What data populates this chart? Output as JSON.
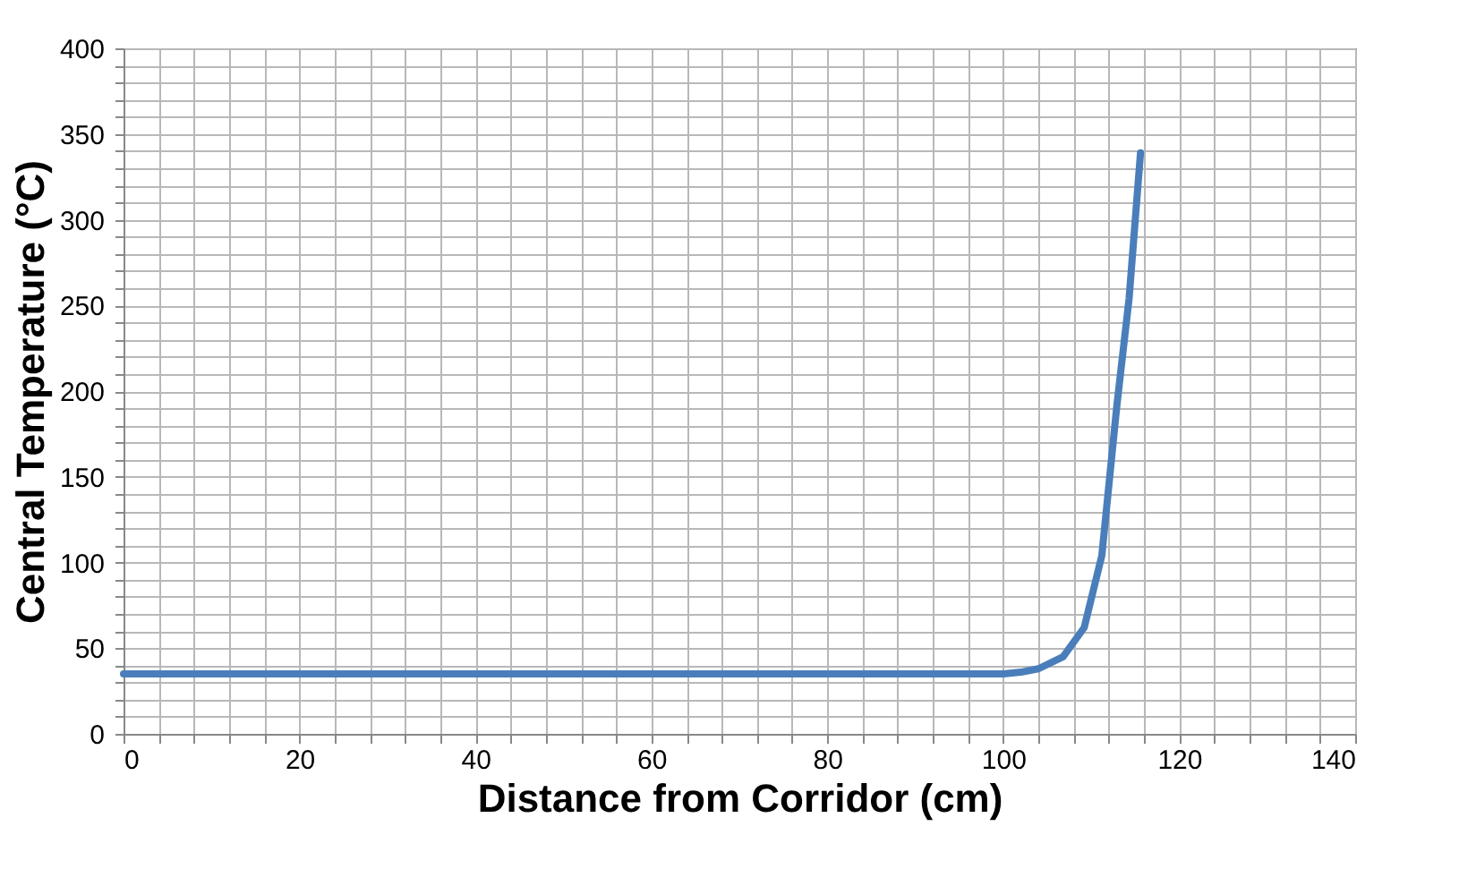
{
  "chart_data": {
    "type": "line",
    "xlabel": "Distance from Corridor (cm)",
    "ylabel": "Central Temperature (°C)",
    "series": [
      {
        "color": "#4a7ebb",
        "x": [
          0,
          20,
          40,
          60,
          80,
          100,
          102,
          104,
          106.8,
          109.2,
          111.2,
          112.9,
          114.3,
          115.6
        ],
        "values": [
          35,
          35,
          35,
          35,
          35,
          35,
          36,
          38,
          45,
          62,
          104,
          191,
          254,
          339
        ]
      }
    ],
    "xlim": [
      0,
      140
    ],
    "ylim": [
      0,
      400
    ],
    "xticks": [
      0,
      {
        "value": 4,
        "label": null
      },
      {
        "value": 8,
        "label": null
      },
      {
        "value": 12,
        "label": null
      },
      {
        "value": 16,
        "label": null
      },
      20,
      {
        "value": 24,
        "label": null
      },
      {
        "value": 28,
        "label": null
      },
      {
        "value": 32,
        "label": null
      },
      {
        "value": 36,
        "label": null
      },
      40,
      {
        "value": 44,
        "label": null
      },
      {
        "value": 48,
        "label": null
      },
      {
        "value": 52,
        "label": null
      },
      {
        "value": 56,
        "label": null
      },
      60,
      {
        "value": 64,
        "label": null
      },
      {
        "value": 68,
        "label": null
      },
      {
        "value": 72,
        "label": null
      },
      {
        "value": 76,
        "label": null
      },
      80,
      {
        "value": 84,
        "label": null
      },
      {
        "value": 88,
        "label": null
      },
      {
        "value": 92,
        "label": null
      },
      {
        "value": 96,
        "label": null
      },
      100,
      {
        "value": 104,
        "label": null
      },
      {
        "value": 108,
        "label": null
      },
      {
        "value": 112,
        "label": null
      },
      {
        "value": 116,
        "label": null
      },
      120,
      {
        "value": 124,
        "label": null
      },
      {
        "value": 128,
        "label": null
      },
      {
        "value": 132,
        "label": null
      },
      {
        "value": 136,
        "label": null
      },
      140
    ],
    "yticks": [
      0,
      {
        "value": 10,
        "label": null
      },
      {
        "value": 20,
        "label": null
      },
      {
        "value": 30,
        "label": null
      },
      {
        "value": 40,
        "label": null
      },
      50,
      {
        "value": 60,
        "label": null
      },
      {
        "value": 70,
        "label": null
      },
      {
        "value": 80,
        "label": null
      },
      {
        "value": 90,
        "label": null
      },
      100,
      {
        "value": 110,
        "label": null
      },
      {
        "value": 120,
        "label": null
      },
      {
        "value": 130,
        "label": null
      },
      {
        "value": 140,
        "label": null
      },
      150,
      {
        "value": 160,
        "label": null
      },
      {
        "value": 170,
        "label": null
      },
      {
        "value": 180,
        "label": null
      },
      {
        "value": 190,
        "label": null
      },
      200,
      {
        "value": 210,
        "label": null
      },
      {
        "value": 220,
        "label": null
      },
      {
        "value": 230,
        "label": null
      },
      {
        "value": 240,
        "label": null
      },
      250,
      {
        "value": 260,
        "label": null
      },
      {
        "value": 270,
        "label": null
      },
      {
        "value": 280,
        "label": null
      },
      {
        "value": 290,
        "label": null
      },
      300,
      {
        "value": 310,
        "label": null
      },
      {
        "value": 320,
        "label": null
      },
      {
        "value": 330,
        "label": null
      },
      {
        "value": 340,
        "label": null
      },
      350,
      {
        "value": 360,
        "label": null
      },
      {
        "value": 370,
        "label": null
      },
      {
        "value": 380,
        "label": null
      },
      {
        "value": 390,
        "label": null
      },
      400
    ],
    "grid": true,
    "marker": "none",
    "line_style": "solid"
  }
}
